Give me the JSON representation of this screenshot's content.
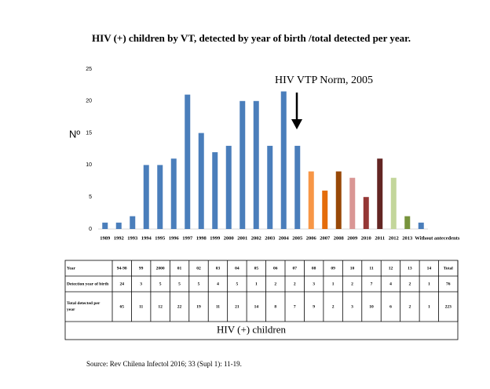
{
  "chart_data": {
    "type": "bar",
    "title": "HIV (+) children  by VT, detected by year of birth /total detected per year.",
    "y_label": "Nº",
    "annotation": "HIV VTP Norm, 2005",
    "categories": [
      "1989",
      "1992",
      "1993",
      "1994",
      "1995",
      "1996",
      "1997",
      "1998",
      "1999",
      "2000",
      "2001",
      "2002",
      "2003",
      "2004",
      "2005",
      "2006",
      "2007",
      "2008",
      "2009",
      "2010",
      "2011",
      "2012",
      "2013",
      "Without antecedents"
    ],
    "values": [
      1,
      1,
      2,
      10,
      10,
      11,
      21,
      15,
      12,
      13,
      20,
      20,
      13,
      21.5,
      13,
      9,
      6,
      9,
      8,
      5,
      11,
      8,
      2,
      1
    ],
    "colors": [
      "#4a7ebb",
      "#4a7ebb",
      "#4a7ebb",
      "#4a7ebb",
      "#4a7ebb",
      "#4a7ebb",
      "#4a7ebb",
      "#4a7ebb",
      "#4a7ebb",
      "#4a7ebb",
      "#4a7ebb",
      "#4a7ebb",
      "#4a7ebb",
      "#4a7ebb",
      "#4a7ebb",
      "#f79646",
      "#e46c0a",
      "#984807",
      "#d99694",
      "#953735",
      "#632523",
      "#c3d69b",
      "#77933c",
      "#4a7ebb"
    ],
    "ylim": [
      0,
      25
    ],
    "yticks": [
      0,
      5,
      10,
      15,
      20,
      25
    ],
    "grid": false
  },
  "table": {
    "rows": [
      [
        "Year",
        "94-98",
        "99",
        "2000",
        "01",
        "02",
        "03",
        "04",
        "05",
        "06",
        "07",
        "08",
        "09",
        "10",
        "11",
        "12",
        "13",
        "14",
        "Total"
      ],
      [
        "Detection year of birth",
        "24",
        "3",
        "5",
        "5",
        "5",
        "4",
        "5",
        "1",
        "2",
        "2",
        "3",
        "1",
        "2",
        "7",
        "4",
        "2",
        "1",
        "76"
      ],
      [
        "Total detected per year",
        "65",
        "11",
        "12",
        "22",
        "19",
        "11",
        "21",
        "14",
        "8",
        "7",
        "9",
        "2",
        "3",
        "10",
        "6",
        "2",
        "1",
        "223"
      ]
    ],
    "caption": "HIV (+) children"
  },
  "source": "Source: Rev Chilena Infectol 2016; 33 (Supl 1): 11-19."
}
